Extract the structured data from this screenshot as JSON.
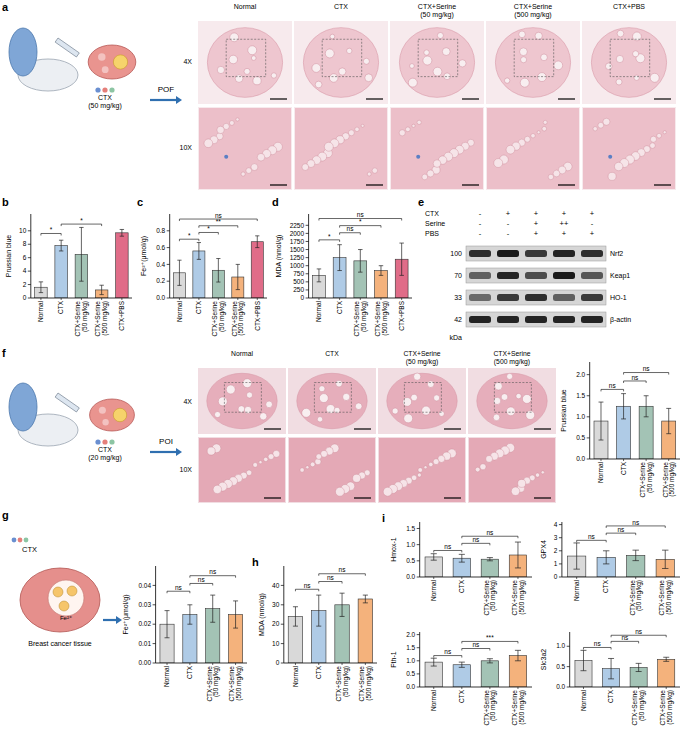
{
  "chart_data": [
    {
      "type": "bar",
      "ylabel": "Prussian blue",
      "categories": [
        "Normal",
        "CTX",
        "CTX+Serine (50 mg/kg)",
        "CTX+Serine (500 mg/kg)",
        "CTX+PBS"
      ],
      "values": [
        1.6,
        7.8,
        6.5,
        1.2,
        9.7
      ],
      "errors": [
        0.8,
        0.8,
        4.0,
        0.7,
        0.5
      ],
      "colors": [
        "#d9d9d9",
        "#afcbe6",
        "#a3c3b5",
        "#f4b27c",
        "#e06c88"
      ],
      "ylim": [
        0,
        12.5
      ],
      "yticks": [
        0,
        2,
        4,
        6,
        8,
        10
      ],
      "annotations": [
        {
          "text": "*",
          "between": [
            0,
            1
          ],
          "y": 9.6
        },
        {
          "text": "*",
          "between": [
            1,
            3
          ],
          "y": 11.0
        }
      ]
    },
    {
      "type": "bar",
      "ylabel": "Fe²⁺(μmol/g)",
      "categories": [
        "Normal",
        "CTX",
        "CTX+Serine (50 mg/kg)",
        "CTX+Serine (500 mg/kg)",
        "CTX+PBS"
      ],
      "values": [
        0.3,
        0.56,
        0.33,
        0.25,
        0.67
      ],
      "errors": [
        0.15,
        0.1,
        0.14,
        0.15,
        0.07
      ],
      "colors": [
        "#d9d9d9",
        "#afcbe6",
        "#a3c3b5",
        "#f4b27c",
        "#e06c88"
      ],
      "ylim": [
        0,
        1.0
      ],
      "yticks": [
        {
          "value": 0,
          "label": "0.0"
        },
        {
          "value": 0.2,
          "label": "0.2"
        },
        {
          "value": 0.4,
          "label": "0.4"
        },
        {
          "value": 0.6,
          "label": "0.6"
        },
        {
          "value": 0.8,
          "label": "0.8"
        }
      ],
      "annotations": [
        {
          "text": "*",
          "between": [
            0,
            1
          ],
          "y": 0.7
        },
        {
          "text": "*",
          "between": [
            1,
            2
          ],
          "y": 0.78
        },
        {
          "text": "**",
          "between": [
            1,
            3
          ],
          "y": 0.86
        },
        {
          "text": "ns",
          "between": [
            0,
            4
          ],
          "y": 0.94
        }
      ]
    },
    {
      "type": "bar",
      "ylabel": "MDA (nmol/g)",
      "categories": [
        "Normal",
        "CTX",
        "CTX+Serine (50 mg/kg)",
        "CTX+Serine (500 mg/kg)",
        "CTX+PBS"
      ],
      "values": [
        700,
        1250,
        1150,
        850,
        1200
      ],
      "errors": [
        200,
        400,
        350,
        150,
        500
      ],
      "colors": [
        "#d9d9d9",
        "#afcbe6",
        "#a3c3b5",
        "#f4b27c",
        "#e06c88"
      ],
      "ylim": [
        0,
        2600
      ],
      "yticks": [
        0,
        250,
        500,
        750,
        1000,
        1250,
        1500,
        1750,
        2000,
        2250
      ],
      "annotations": [
        {
          "text": "*",
          "between": [
            0,
            1
          ],
          "y": 1800
        },
        {
          "text": "ns",
          "between": [
            1,
            2
          ],
          "y": 2020
        },
        {
          "text": "*",
          "between": [
            1,
            3
          ],
          "y": 2240
        },
        {
          "text": "ns",
          "between": [
            0,
            4
          ],
          "y": 2460
        }
      ]
    },
    {
      "type": "bar",
      "ylabel": "Prussian blue",
      "categories": [
        "Normal",
        "CTX",
        "CTX+Serine (50 mg/kg)",
        "CTX+Serine (500 mg/kg)"
      ],
      "values": [
        0.9,
        1.25,
        1.25,
        0.9
      ],
      "errors": [
        0.45,
        0.3,
        0.25,
        0.3
      ],
      "colors": [
        "#d9d9d9",
        "#afcbe6",
        "#a3c3b5",
        "#f4b27c"
      ],
      "ylim": [
        0,
        2.3
      ],
      "yticks": [
        {
          "value": 0,
          "label": "0.0"
        },
        {
          "value": 0.5,
          "label": "0.5"
        },
        {
          "value": 1,
          "label": "1.0"
        },
        {
          "value": 1.5,
          "label": "1.5"
        },
        {
          "value": 2,
          "label": "2.0"
        }
      ],
      "annotations": [
        {
          "text": "ns",
          "between": [
            0,
            1
          ],
          "y": 1.65
        },
        {
          "text": "ns",
          "between": [
            1,
            2
          ],
          "y": 1.85
        },
        {
          "text": "ns",
          "between": [
            1,
            3
          ],
          "y": 2.05
        }
      ]
    },
    {
      "type": "bar",
      "ylabel": "Fe²⁺(μmol/g)",
      "categories": [
        "Normal",
        "CTX",
        "CTX+Serine (50 mg/kg)",
        "CTX+Serine (500 mg/kg)"
      ],
      "values": [
        0.02,
        0.025,
        0.028,
        0.025
      ],
      "errors": [
        0.007,
        0.005,
        0.007,
        0.007
      ],
      "colors": [
        "#d9d9d9",
        "#afcbe6",
        "#a3c3b5",
        "#f4b27c"
      ],
      "ylim": [
        0,
        0.05
      ],
      "yticks": [
        {
          "value": 0,
          "label": "0.00"
        },
        {
          "value": 0.01,
          "label": "0.01"
        },
        {
          "value": 0.02,
          "label": "0.02"
        },
        {
          "value": 0.03,
          "label": "0.03"
        },
        {
          "value": 0.04,
          "label": "0.04"
        }
      ],
      "annotations": [
        {
          "text": "ns",
          "between": [
            0,
            1
          ],
          "y": 0.037
        },
        {
          "text": "ns",
          "between": [
            1,
            2
          ],
          "y": 0.041
        },
        {
          "text": "ns",
          "between": [
            1,
            3
          ],
          "y": 0.045
        }
      ]
    },
    {
      "type": "bar",
      "ylabel": "MDA (nmol/g)",
      "categories": [
        "Normal",
        "CTX",
        "CTX+Serine (50 mg/kg)",
        "CTX+Serine (500 mg/kg)"
      ],
      "values": [
        24,
        27,
        30,
        33
      ],
      "errors": [
        5,
        8,
        6,
        2
      ],
      "colors": [
        "#d9d9d9",
        "#afcbe6",
        "#a3c3b5",
        "#f4b27c"
      ],
      "ylim": [
        0,
        50
      ],
      "yticks": [
        0,
        10,
        20,
        30,
        40
      ],
      "annotations": [
        {
          "text": "ns",
          "between": [
            0,
            1
          ],
          "y": 38
        },
        {
          "text": "ns",
          "between": [
            1,
            2
          ],
          "y": 42
        },
        {
          "text": "ns",
          "between": [
            1,
            3
          ],
          "y": 46
        }
      ]
    },
    {
      "type": "bar",
      "ylabel": "Hmox-1",
      "categories": [
        "Normal",
        "CTX",
        "CTX+Serine (50 mg/kg)",
        "CTX+Serine (500 mg/kg)"
      ],
      "values": [
        0.62,
        0.58,
        0.55,
        0.68
      ],
      "errors": [
        0.1,
        0.12,
        0.05,
        0.4
      ],
      "colors": [
        "#d9d9d9",
        "#afcbe6",
        "#a3c3b5",
        "#f4b27c"
      ],
      "ylim": [
        0,
        1.7
      ],
      "yticks": [
        {
          "value": 0,
          "label": "0.0"
        },
        {
          "value": 0.5,
          "label": "0.5"
        },
        {
          "value": 1,
          "label": "1.0"
        },
        {
          "value": 1.5,
          "label": "1.5"
        }
      ],
      "annotations": [
        {
          "text": "ns",
          "between": [
            0,
            1
          ],
          "y": 0.82
        },
        {
          "text": "ns",
          "between": [
            1,
            2
          ],
          "y": 1.04
        },
        {
          "text": "ns",
          "between": [
            1,
            3
          ],
          "y": 1.26
        }
      ]
    },
    {
      "type": "bar",
      "ylabel": "GPX4",
      "categories": [
        "Normal",
        "CTX",
        "CTX+Serine (50 mg/kg)",
        "CTX+Serine (500 mg/kg)"
      ],
      "values": [
        1.6,
        1.5,
        1.65,
        1.35
      ],
      "errors": [
        1.0,
        0.5,
        0.4,
        0.7
      ],
      "colors": [
        "#d9d9d9",
        "#afcbe6",
        "#a3c3b5",
        "#f4b27c"
      ],
      "ylim": [
        0,
        4.2
      ],
      "yticks": [
        0,
        1,
        2,
        3,
        4
      ],
      "annotations": [
        {
          "text": "ns",
          "between": [
            0,
            1
          ],
          "y": 2.8
        },
        {
          "text": "ns",
          "between": [
            1,
            2
          ],
          "y": 3.35
        },
        {
          "text": "ns",
          "between": [
            1,
            3
          ],
          "y": 3.9
        }
      ]
    },
    {
      "type": "bar",
      "ylabel": "Fth-1",
      "categories": [
        "Normal",
        "CTX",
        "CTX+Serine (50 mg/kg)",
        "CTX+Serine (500 mg/kg)"
      ],
      "values": [
        0.95,
        0.85,
        1.0,
        1.2
      ],
      "errors": [
        0.15,
        0.1,
        0.08,
        0.2
      ],
      "colors": [
        "#d9d9d9",
        "#afcbe6",
        "#a3c3b5",
        "#f4b27c"
      ],
      "ylim": [
        0,
        2.1
      ],
      "yticks": [
        {
          "value": 0,
          "label": "0.0"
        },
        {
          "value": 0.5,
          "label": "0.5"
        },
        {
          "value": 1,
          "label": "1.0"
        },
        {
          "value": 1.5,
          "label": "1.5"
        },
        {
          "value": 2,
          "label": "2.0"
        }
      ],
      "annotations": [
        {
          "text": "ns",
          "between": [
            0,
            1
          ],
          "y": 1.2
        },
        {
          "text": "ns",
          "between": [
            1,
            2
          ],
          "y": 1.47
        },
        {
          "text": "***",
          "between": [
            1,
            3
          ],
          "y": 1.74
        }
      ]
    },
    {
      "type": "bar",
      "ylabel": "Slc3a2",
      "categories": [
        "Normal",
        "CTX",
        "CTX+Serine (50 mg/kg)",
        "CTX+Serine (500 mg/kg)"
      ],
      "values": [
        0.65,
        0.45,
        0.48,
        0.68
      ],
      "errors": [
        0.25,
        0.25,
        0.1,
        0.05
      ],
      "colors": [
        "#d9d9d9",
        "#afcbe6",
        "#a3c3b5",
        "#f4b27c"
      ],
      "ylim": [
        0,
        1.35
      ],
      "yticks": [
        {
          "value": 0,
          "label": "0.0"
        },
        {
          "value": 0.5,
          "label": "0.5"
        },
        {
          "value": 1,
          "label": "1.0"
        }
      ],
      "annotations": [
        {
          "text": "ns",
          "between": [
            0,
            1
          ],
          "y": 0.97
        },
        {
          "text": "ns",
          "between": [
            1,
            2
          ],
          "y": 1.12
        },
        {
          "text": "ns",
          "between": [
            1,
            3
          ],
          "y": 1.27
        }
      ]
    }
  ],
  "figure": {
    "panel_letters": [
      "a",
      "b",
      "c",
      "d",
      "e",
      "f",
      "g",
      "h",
      "i"
    ],
    "a": {
      "drug": "CTX",
      "dose": "(50 mg/kg)",
      "model": "POF",
      "columns": [
        "Normal",
        "CTX",
        "CTX+Serine (50 mg/kg)",
        "CTX+Serine (500 mg/kg)",
        "CTX+PBS"
      ],
      "rows": [
        "4X",
        "10X"
      ]
    },
    "e": {
      "conditions": [
        {
          "name": "CTX",
          "signs": [
            "-",
            "+",
            "+",
            "+",
            "+"
          ]
        },
        {
          "name": "Serine",
          "signs": [
            "-",
            "-",
            "+",
            "++",
            "-"
          ]
        },
        {
          "name": "PBS",
          "signs": [
            "-",
            "-",
            "+",
            "+",
            "+"
          ]
        }
      ],
      "proteins": [
        {
          "name": "Nrf2",
          "kda": 100
        },
        {
          "name": "Keap1",
          "kda": 70
        },
        {
          "name": "HO-1",
          "kda": 33
        },
        {
          "name": "β-actin",
          "kda": 42
        }
      ],
      "unit": "kDa"
    },
    "f": {
      "drug": "CTX",
      "dose": "(20 mg/kg)",
      "model": "POI",
      "columns": [
        "Normal",
        "CTX",
        "CTX+Serine (50 mg/kg)",
        "CTX+Serine (500 mg/kg)"
      ],
      "rows": [
        "4X",
        "10X"
      ]
    },
    "g": {
      "drug": "CTX",
      "tissue": "Breast cancer tissue",
      "ion": "Fe²⁺"
    }
  }
}
